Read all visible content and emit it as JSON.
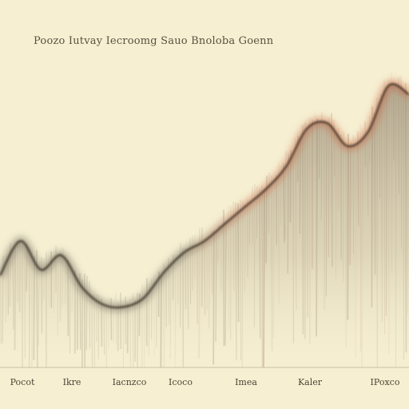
{
  "chart_data": {
    "type": "area",
    "title": "Poozo Iutvay Iecroomg Sauo Bnoloba Goenn",
    "xlabel": "",
    "ylabel": "",
    "x_tick_labels": [
      "Pocot",
      "Ikre",
      "Iacnzco",
      "Icoco",
      "Imea",
      "Kaler",
      "IPoxco"
    ],
    "x": [
      0,
      5,
      10,
      15,
      20,
      25,
      30,
      35,
      40,
      45,
      50,
      55,
      60,
      65,
      70,
      75,
      80,
      85,
      90,
      95,
      100
    ],
    "ylim": [
      0,
      100
    ],
    "grid": false,
    "legend": "none",
    "series": [
      {
        "values": [
          32,
          44,
          34,
          39,
          28,
          22,
          21,
          24,
          33,
          40,
          44,
          50,
          56,
          62,
          70,
          83,
          85,
          77,
          82,
          98,
          95
        ],
        "color": "#c0593c"
      }
    ]
  }
}
